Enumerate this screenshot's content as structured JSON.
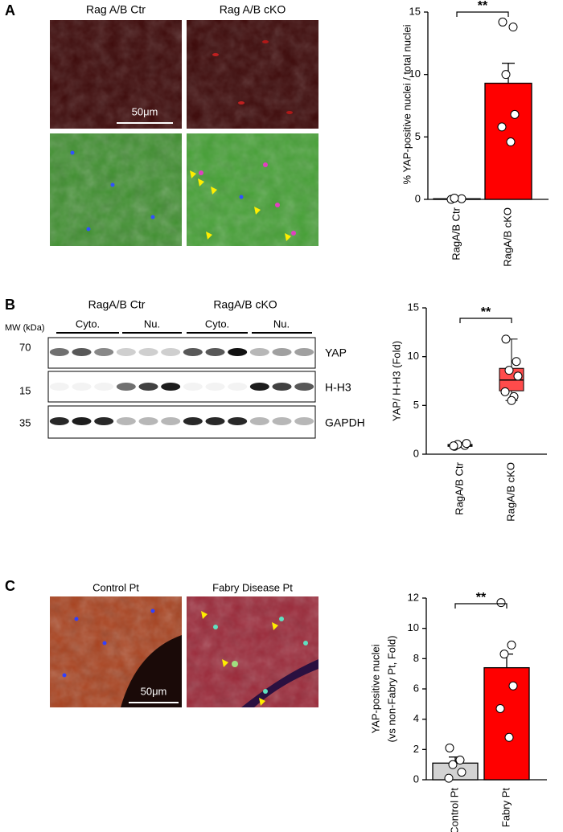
{
  "panel_labels": [
    "A",
    "B",
    "C"
  ],
  "panel_a": {
    "image_labels": [
      "Rag A/B Ctr",
      "Rag A/B  cKO"
    ],
    "scale_bar": "50μm"
  },
  "panel_b": {
    "group_labels": [
      "RagA/B Ctr",
      "RagA/B cKO"
    ],
    "mw_label": "MW (kDa)",
    "fraction_labels": [
      "Cyto.",
      "Nu.",
      "Cyto.",
      "Nu."
    ],
    "mw_markers": [
      "70",
      "15",
      "35"
    ],
    "proteins": [
      "YAP",
      "H-H3",
      "GAPDH"
    ]
  },
  "panel_c": {
    "image_labels": [
      "Control Pt",
      "Fabry Disease Pt"
    ],
    "scale_bar": "50μm"
  },
  "chart_data": [
    {
      "type": "bar",
      "ylabel": "% YAP-positive nuclei / total nuclei",
      "categories": [
        "RagA/B Ctr",
        "RagA/B cKO"
      ],
      "values": [
        0.05,
        9.3
      ],
      "errors": [
        null,
        1.6
      ],
      "colors": [
        "#d9d9d9",
        "#ff0000"
      ],
      "points": [
        [
          0,
          0.05,
          0.1
        ],
        [
          14.2,
          13.8,
          10,
          6.8,
          5.8,
          4.6
        ]
      ],
      "ylim": [
        0,
        15
      ],
      "yticks": [
        0,
        5,
        10,
        15
      ],
      "annotation": "**"
    },
    {
      "type": "box",
      "ylabel": "YAP/ H-H3 (Fold)",
      "categories": [
        "RagA/B Ctr",
        "RagA/B cKO"
      ],
      "boxes": [
        {
          "min": 0.7,
          "q1": 0.8,
          "median": 0.9,
          "q3": 1.0,
          "max": 1.1
        },
        {
          "min": 5.5,
          "q1": 6.5,
          "median": 7.6,
          "q3": 8.8,
          "max": 11.8
        }
      ],
      "colors": [
        "#bfbfbf",
        "#ff4b4b"
      ],
      "points": [
        [
          0.8,
          0.9,
          1.0,
          1.1,
          0.85
        ],
        [
          11.8,
          9.5,
          8.6,
          8.0,
          6.4,
          5.9,
          5.5
        ]
      ],
      "ylim": [
        0,
        15
      ],
      "yticks": [
        0,
        5,
        10,
        15
      ],
      "annotation": "**"
    },
    {
      "type": "bar",
      "ylabel": [
        "YAP-positive nuclei",
        "(vs non-Fabry Pt, Fold)"
      ],
      "categories": [
        "Control Pt",
        "Fabry Pt"
      ],
      "values": [
        1.1,
        7.4
      ],
      "errors": [
        0.4,
        0.9
      ],
      "colors": [
        "#d3d3d3",
        "#ff0000"
      ],
      "points": [
        [
          2.1,
          1.3,
          1.0,
          0.5,
          0.1
        ],
        [
          11.7,
          8.9,
          8.3,
          6.2,
          4.7,
          2.8
        ]
      ],
      "ylim": [
        0,
        12
      ],
      "yticks": [
        0,
        2,
        4,
        6,
        8,
        10,
        12
      ],
      "annotation": "**"
    }
  ]
}
